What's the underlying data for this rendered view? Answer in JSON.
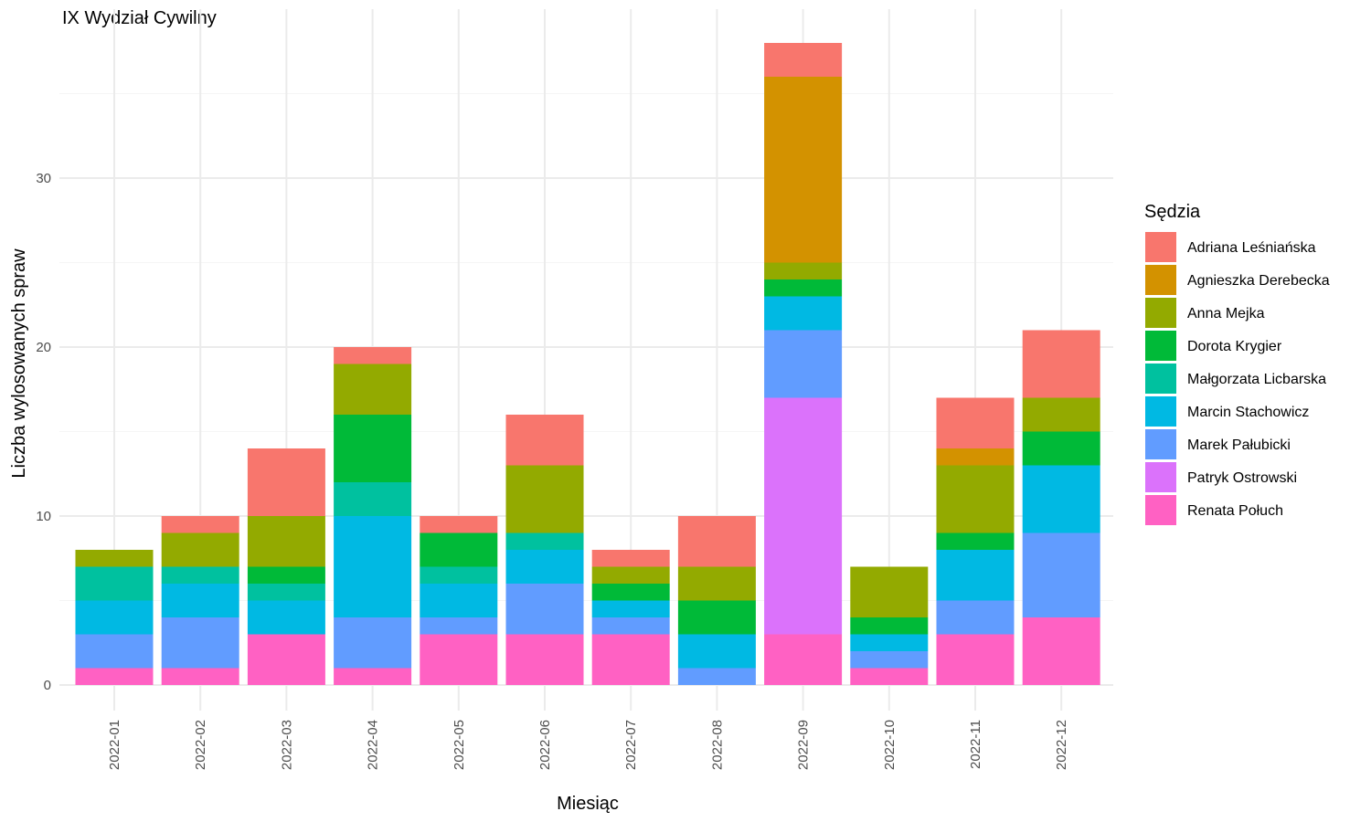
{
  "chart_data": {
    "type": "bar",
    "stacked": true,
    "title": "IX Wydział Cywilny",
    "xlabel": "Miesiąc",
    "ylabel": "Liczba wylosowanych spraw",
    "ylim": [
      0,
      38
    ],
    "yticks": [
      0,
      10,
      20,
      30
    ],
    "grid": true,
    "legend_title": "Sędzia",
    "legend_position": "right",
    "categories": [
      "2022-01",
      "2022-02",
      "2022-03",
      "2022-04",
      "2022-05",
      "2022-06",
      "2022-07",
      "2022-08",
      "2022-09",
      "2022-10",
      "2022-11",
      "2022-12"
    ],
    "series": [
      {
        "name": "Renata Połuch",
        "color": "#FF61C3",
        "values": [
          1,
          1,
          3,
          1,
          3,
          3,
          3,
          0,
          3,
          1,
          3,
          4
        ]
      },
      {
        "name": "Patryk Ostrowski",
        "color": "#DB72FB",
        "values": [
          0,
          0,
          0,
          0,
          0,
          0,
          0,
          0,
          14,
          0,
          0,
          0
        ]
      },
      {
        "name": "Marek Pałubicki",
        "color": "#619CFF",
        "values": [
          2,
          3,
          0,
          3,
          1,
          3,
          1,
          1,
          4,
          1,
          2,
          5
        ]
      },
      {
        "name": "Marcin Stachowicz",
        "color": "#00B9E3",
        "values": [
          2,
          2,
          2,
          6,
          2,
          2,
          1,
          2,
          2,
          1,
          3,
          4
        ]
      },
      {
        "name": "Małgorzata Licbarska",
        "color": "#00C19F",
        "values": [
          2,
          1,
          1,
          2,
          1,
          1,
          0,
          0,
          0,
          0,
          0,
          0
        ]
      },
      {
        "name": "Dorota Krygier",
        "color": "#00BA38",
        "values": [
          0,
          0,
          1,
          4,
          2,
          0,
          1,
          2,
          1,
          1,
          1,
          2
        ]
      },
      {
        "name": "Anna Mejka",
        "color": "#93AA00",
        "values": [
          1,
          2,
          3,
          3,
          0,
          4,
          1,
          2,
          1,
          3,
          4,
          2
        ]
      },
      {
        "name": "Agnieszka Derebecka",
        "color": "#D39200",
        "values": [
          0,
          0,
          0,
          0,
          0,
          0,
          0,
          0,
          11,
          0,
          1,
          0
        ]
      },
      {
        "name": "Adriana Leśniańska",
        "color": "#F8766D",
        "values": [
          0,
          1,
          4,
          1,
          1,
          3,
          1,
          3,
          2,
          0,
          3,
          4
        ]
      }
    ],
    "legend_order": [
      "Adriana Leśniańska",
      "Agnieszka Derebecka",
      "Anna Mejka",
      "Dorota Krygier",
      "Małgorzata Licbarska",
      "Marcin Stachowicz",
      "Marek Pałubicki",
      "Patryk Ostrowski",
      "Renata Połuch"
    ]
  }
}
